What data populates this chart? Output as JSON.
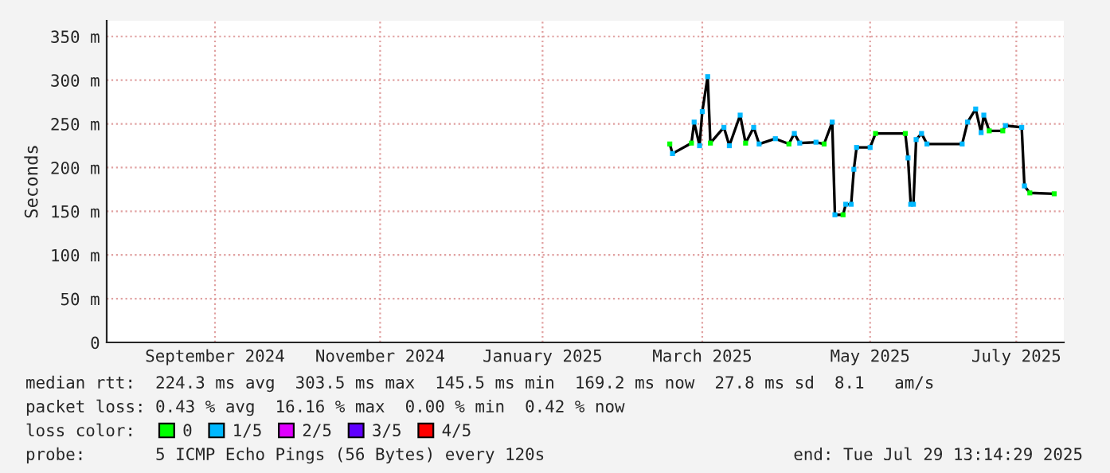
{
  "chart_data": {
    "type": "line",
    "ylabel": "Seconds",
    "legend_title": "loss color:",
    "legend": "bottom",
    "grid": true,
    "x": [
      "2025-03-06",
      "2025-03-07",
      "2025-03-14",
      "2025-03-15",
      "2025-03-17",
      "2025-03-18",
      "2025-03-20",
      "2025-03-21",
      "2025-03-26",
      "2025-03-28",
      "2025-04-01",
      "2025-04-03",
      "2025-04-06",
      "2025-04-08",
      "2025-04-14",
      "2025-04-19",
      "2025-04-21",
      "2025-04-23",
      "2025-04-29",
      "2025-05-02",
      "2025-05-05",
      "2025-05-06",
      "2025-05-09",
      "2025-05-10",
      "2025-05-12",
      "2025-05-13",
      "2025-05-14",
      "2025-05-19",
      "2025-05-21",
      "2025-06-01",
      "2025-06-02",
      "2025-06-03",
      "2025-06-04",
      "2025-06-05",
      "2025-06-07",
      "2025-06-09",
      "2025-06-22",
      "2025-06-24",
      "2025-06-27",
      "2025-06-29",
      "2025-06-30",
      "2025-07-02",
      "2025-07-07",
      "2025-07-08",
      "2025-07-14",
      "2025-07-15",
      "2025-07-17",
      "2025-07-26"
    ],
    "series": [
      {
        "color": "#000000",
        "values": [
          227,
          216,
          228,
          252,
          225,
          264,
          304,
          228,
          246,
          225,
          260,
          228,
          246,
          227,
          233,
          227,
          239,
          228,
          229,
          227,
          252,
          146,
          146,
          158,
          158,
          198,
          223,
          223,
          239,
          239,
          211,
          158,
          158,
          232,
          239,
          227,
          227,
          252,
          267,
          240,
          260,
          242,
          242,
          248,
          246,
          179,
          171,
          170
        ]
      },
      {
        "name": "0",
        "color": "#00ff00",
        "type": "scatter",
        "values": [
          227,
          null,
          228,
          null,
          null,
          null,
          null,
          228,
          null,
          null,
          null,
          228,
          null,
          null,
          null,
          227,
          null,
          null,
          null,
          227,
          null,
          null,
          146,
          null,
          null,
          null,
          null,
          null,
          239,
          239,
          null,
          null,
          null,
          null,
          null,
          null,
          null,
          null,
          null,
          null,
          null,
          242,
          242,
          null,
          null,
          null,
          171,
          170
        ]
      },
      {
        "name": "1/5",
        "color": "#00b8ff",
        "type": "scatter",
        "values": [
          null,
          216,
          null,
          252,
          225,
          264,
          304,
          null,
          246,
          225,
          260,
          null,
          246,
          227,
          233,
          null,
          239,
          228,
          229,
          null,
          252,
          146,
          null,
          158,
          158,
          198,
          223,
          223,
          null,
          null,
          211,
          158,
          158,
          232,
          239,
          227,
          227,
          252,
          267,
          240,
          260,
          null,
          null,
          248,
          246,
          179,
          null,
          null
        ]
      },
      {
        "name": "2/5",
        "color": "#e000ff",
        "type": "scatter",
        "values": [
          null,
          null,
          null,
          null,
          null,
          null,
          null,
          null,
          null,
          null,
          null,
          null,
          null,
          null,
          null,
          null,
          null,
          null,
          null,
          null,
          null,
          null,
          null,
          null,
          null,
          null,
          null,
          null,
          null,
          null,
          null,
          null,
          null,
          null,
          null,
          null,
          null,
          null,
          null,
          null,
          null,
          null,
          null,
          null,
          null,
          null,
          null,
          null
        ]
      },
      {
        "name": "3/5",
        "color": "#6000ff",
        "type": "scatter",
        "values": [
          null,
          null,
          null,
          null,
          null,
          null,
          null,
          null,
          null,
          null,
          null,
          null,
          null,
          null,
          null,
          null,
          null,
          null,
          null,
          null,
          null,
          null,
          null,
          null,
          null,
          null,
          null,
          null,
          null,
          null,
          null,
          null,
          null,
          null,
          null,
          null,
          null,
          null,
          null,
          null,
          null,
          null,
          null,
          null,
          null,
          null,
          null,
          null
        ]
      },
      {
        "name": "4/5",
        "color": "#ff0000",
        "type": "scatter",
        "values": [
          null,
          null,
          null,
          null,
          null,
          null,
          null,
          null,
          null,
          null,
          null,
          null,
          null,
          null,
          null,
          null,
          null,
          null,
          null,
          null,
          null,
          null,
          null,
          null,
          null,
          null,
          null,
          null,
          null,
          null,
          null,
          null,
          null,
          null,
          null,
          null,
          null,
          null,
          null,
          null,
          null,
          null,
          null,
          null,
          null,
          null,
          null,
          null
        ]
      }
    ],
    "xlim": [
      "2024-08-10",
      "2025-07-29T13:14"
    ],
    "xticks": [
      {
        "value": "2024-09-19",
        "label": "September 2024"
      },
      {
        "value": "2024-11-19",
        "label": "November 2024"
      },
      {
        "value": "2025-01-18",
        "label": "January 2025"
      },
      {
        "value": "2025-03-18",
        "label": "March 2025"
      },
      {
        "value": "2025-05-19",
        "label": "May 2025"
      },
      {
        "value": "2025-07-12",
        "label": "July 2025"
      }
    ],
    "ylim": [
      0,
      368
    ],
    "yticks": [
      0,
      {
        "value": 50,
        "label": "50 m"
      },
      {
        "value": 100,
        "label": "100 m"
      },
      {
        "value": 150,
        "label": "150 m"
      },
      {
        "value": 200,
        "label": "200 m"
      },
      {
        "value": 250,
        "label": "250 m"
      },
      {
        "value": 300,
        "label": "300 m"
      },
      {
        "value": 350,
        "label": "350 m"
      }
    ],
    "annotations": [
      "median rtt:  224.3 ms avg  303.5 ms max  145.5 ms min  169.2 ms now  27.8 ms sd  8.1   am/s",
      "packet loss: 0.43 % avg  16.16 % max  0.00 % min  0.42 % now",
      "probe:       5 ICMP Echo Pings (56 Bytes) every 120s",
      "end: Tue Jul 29 13:14:29 2025"
    ]
  }
}
